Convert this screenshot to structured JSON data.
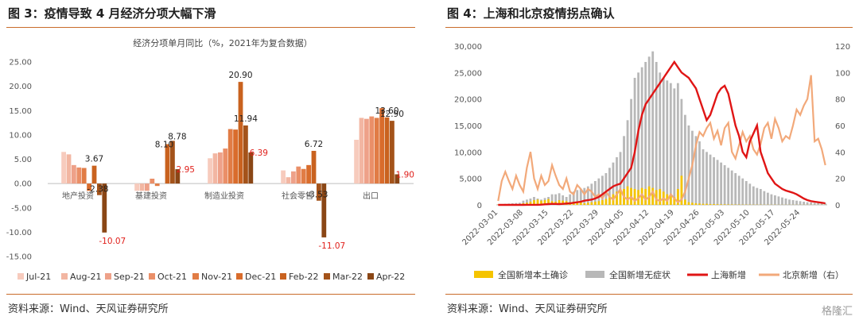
{
  "left": {
    "title": "图 3：疫情导致 4 月经济分项大幅下滑",
    "source": "资料来源：Wind、天风证券研究所"
  },
  "right": {
    "title": "图 4：上海和北京疫情拐点确认",
    "source": "资料来源：Wind、天风证券研究所",
    "watermark": "格隆汇"
  },
  "chart_data": [
    {
      "type": "bar",
      "title": "经济分项单月同比（%，2021年为复合数据）",
      "categories": [
        "地产投资",
        "基建投资",
        "制造业投资",
        "社会零售",
        "出口"
      ],
      "ylim": [
        -15,
        25
      ],
      "yticks": [
        "25.00",
        "20.00",
        "15.00",
        "10.00",
        "5.00",
        "0.00",
        "-5.00",
        "-10.00",
        "-15.00"
      ],
      "legend_position": "bottom",
      "series": [
        {
          "name": "Jul-21",
          "color": "#f7cbbd",
          "values": [
            6.5,
            -1.5,
            5.2,
            2.7,
            9.0
          ]
        },
        {
          "name": "Aug-21",
          "color": "#f2b6a2",
          "values": [
            6.0,
            -1.5,
            6.2,
            1.3,
            13.5
          ]
        },
        {
          "name": "Sep-21",
          "color": "#eea189",
          "values": [
            3.8,
            -1.5,
            6.4,
            2.5,
            13.3
          ]
        },
        {
          "name": "Oct-21",
          "color": "#ea8f68",
          "values": [
            3.3,
            1.0,
            7.2,
            3.5,
            13.8
          ]
        },
        {
          "name": "Nov-21",
          "color": "#e17c45",
          "values": [
            3.2,
            -0.5,
            11.2,
            3.0,
            13.5
          ]
        },
        {
          "name": "Dec-21",
          "color": "#d96c2c",
          "values": [
            -1.5,
            0.0,
            11.1,
            3.8,
            15.5
          ]
        },
        {
          "name": "Feb-22",
          "color": "#c9621f",
          "values": [
            3.67,
            8.1,
            20.9,
            6.72,
            13.6
          ]
        },
        {
          "name": "Mar-22",
          "color": "#a4531a",
          "values": [
            -2.38,
            8.78,
            11.94,
            -3.53,
            12.9
          ]
        },
        {
          "name": "Apr-22",
          "color": "#8a4615",
          "values": [
            -10.07,
            2.95,
            6.39,
            -11.07,
            1.9
          ]
        }
      ],
      "data_labels": [
        {
          "text": "3.67",
          "category": 0,
          "series": 6,
          "value": 3.67,
          "color": "black"
        },
        {
          "text": "-2.38",
          "category": 0,
          "series": 7,
          "value": -2.38,
          "color": "black"
        },
        {
          "text": "-10.07",
          "category": 0,
          "series": 8,
          "value": -10.07,
          "color": "red"
        },
        {
          "text": "8.10",
          "category": 1,
          "series": 6,
          "value": 8.1,
          "color": "black"
        },
        {
          "text": "8.78",
          "category": 1,
          "series": 7,
          "value": 8.78,
          "color": "black"
        },
        {
          "text": "2.95",
          "category": 1,
          "series": 8,
          "value": 2.95,
          "color": "red"
        },
        {
          "text": "20.90",
          "category": 2,
          "series": 6,
          "value": 20.9,
          "color": "black"
        },
        {
          "text": "11.94",
          "category": 2,
          "series": 7,
          "value": 11.94,
          "color": "black"
        },
        {
          "text": "6.39",
          "category": 2,
          "series": 8,
          "value": 6.39,
          "color": "red"
        },
        {
          "text": "6.72",
          "category": 3,
          "series": 6,
          "value": 6.72,
          "color": "black"
        },
        {
          "text": "-3.53",
          "category": 3,
          "series": 7,
          "value": -3.53,
          "color": "black"
        },
        {
          "text": "-11.07",
          "category": 3,
          "series": 8,
          "value": -11.07,
          "color": "red"
        },
        {
          "text": "13.60",
          "category": 4,
          "series": 6,
          "value": 13.6,
          "color": "black"
        },
        {
          "text": "12.90",
          "category": 4,
          "series": 7,
          "value": 12.9,
          "color": "black"
        },
        {
          "text": "1.90",
          "category": 4,
          "series": 8,
          "value": 1.9,
          "color": "red"
        }
      ]
    },
    {
      "type": "bar+line",
      "x_ticks": [
        "2022-03-01",
        "2022-03-08",
        "2022-03-15",
        "2022-03-22",
        "2022-03-29",
        "2022-04-05",
        "2022-04-12",
        "2022-04-19",
        "2022-04-26",
        "2022-05-03",
        "2022-05-10",
        "2022-05-17",
        "2022-05-24"
      ],
      "x_start": "2022-03-01",
      "ylim_left": [
        0,
        30000
      ],
      "yticks_left": [
        "30,000",
        "25,000",
        "20,000",
        "15,000",
        "10,000",
        "5,000",
        "0"
      ],
      "ylim_right": [
        0,
        120
      ],
      "yticks_right": [
        "120",
        "100",
        "80",
        "60",
        "40",
        "20",
        "0"
      ],
      "legend_position": "bottom",
      "series": [
        {
          "name": "全国新增本土确诊",
          "kind": "bar",
          "axis": "left",
          "color": "#f5c400",
          "values": [
            50,
            50,
            50,
            60,
            70,
            100,
            150,
            300,
            400,
            600,
            900,
            1000,
            800,
            900,
            1100,
            700,
            600,
            900,
            800,
            700,
            500,
            600,
            400,
            500,
            300,
            400,
            500,
            600,
            700,
            900,
            1100,
            1500,
            2000,
            2500,
            2800,
            3000,
            3500,
            3200,
            3000,
            2800,
            3200,
            3000,
            3500,
            3200,
            2800,
            3000,
            2500,
            2000,
            1800,
            1500,
            3000,
            5500,
            1000,
            500,
            400,
            300,
            250,
            200,
            200,
            150,
            150,
            120,
            100,
            100,
            80,
            80,
            60,
            60,
            50,
            50,
            50,
            40,
            40,
            40,
            30,
            30,
            30,
            30,
            20,
            20,
            20,
            20,
            20,
            20,
            20,
            20,
            20,
            20,
            20,
            20,
            20,
            20
          ]
        },
        {
          "name": "全国新增无症状",
          "kind": "bar",
          "axis": "left",
          "color": "#b8b8b8",
          "values": [
            100,
            150,
            200,
            250,
            300,
            350,
            400,
            800,
            1000,
            1200,
            1500,
            1200,
            1000,
            1300,
            1500,
            2000,
            2000,
            2200,
            1800,
            1500,
            2000,
            2500,
            2800,
            3000,
            3200,
            3500,
            4000,
            4500,
            5000,
            5500,
            6000,
            7000,
            8000,
            9000,
            10000,
            13000,
            16000,
            20000,
            24000,
            25000,
            26000,
            27000,
            28000,
            29000,
            27000,
            25000,
            24000,
            23500,
            23000,
            22000,
            23000,
            20000,
            17000,
            15000,
            14000,
            13000,
            12000,
            10500,
            10000,
            9500,
            9000,
            8500,
            8000,
            7500,
            7000,
            6500,
            6000,
            5500,
            5000,
            4500,
            4000,
            3500,
            3200,
            3000,
            2600,
            2300,
            2000,
            1800,
            1600,
            1400,
            1200,
            1000,
            900,
            800,
            700,
            600,
            500,
            450,
            400,
            350,
            300,
            280
          ]
        },
        {
          "name": "上海新增",
          "kind": "line",
          "axis": "left",
          "color": "#e01515",
          "values": [
            0,
            0,
            0,
            0,
            0,
            0,
            0,
            0,
            10,
            20,
            20,
            20,
            50,
            100,
            150,
            200,
            180,
            150,
            200,
            250,
            300,
            400,
            500,
            600,
            800,
            900,
            1000,
            1200,
            1500,
            2000,
            2500,
            3000,
            3500,
            3800,
            4000,
            5000,
            6000,
            7000,
            10000,
            14000,
            17000,
            19000,
            20000,
            21000,
            22000,
            23000,
            24000,
            25000,
            26000,
            27000,
            26000,
            25000,
            24500,
            24000,
            23000,
            22000,
            20000,
            18000,
            16000,
            17000,
            19000,
            21000,
            22000,
            22500,
            21000,
            18000,
            15000,
            13000,
            10000,
            9000,
            12000,
            13500,
            15000,
            10000,
            8000,
            6000,
            5000,
            4000,
            3500,
            3000,
            2700,
            2500,
            2300,
            2000,
            1600,
            1200,
            900,
            700,
            600,
            500,
            400,
            300
          ]
        },
        {
          "name": "北京新增（右）",
          "kind": "line",
          "axis": "right",
          "color": "#f2a97a",
          "values": [
            3,
            18,
            25,
            18,
            12,
            22,
            15,
            10,
            28,
            40,
            20,
            12,
            22,
            15,
            18,
            30,
            22,
            15,
            12,
            20,
            10,
            8,
            15,
            12,
            8,
            12,
            10,
            6,
            8,
            5,
            10,
            6,
            4,
            8,
            12,
            6,
            4,
            6,
            3,
            5,
            8,
            4,
            6,
            10,
            4,
            3,
            5,
            3,
            8,
            5,
            2,
            4,
            10,
            20,
            30,
            45,
            55,
            52,
            58,
            62,
            50,
            56,
            45,
            58,
            62,
            40,
            35,
            45,
            55,
            48,
            52,
            42,
            38,
            46,
            58,
            62,
            50,
            65,
            58,
            48,
            52,
            50,
            60,
            72,
            68,
            75,
            80,
            98,
            48,
            50,
            42,
            30
          ]
        }
      ]
    }
  ]
}
